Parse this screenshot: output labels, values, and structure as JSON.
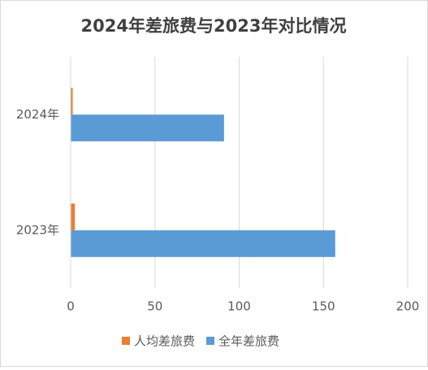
{
  "chart_data": {
    "type": "hbar",
    "title": "2024年差旅费与2023年对比情况",
    "categories": [
      "2024年",
      "2023年"
    ],
    "series": [
      {
        "name": "人均差旅费",
        "color": "#ed7d31",
        "values": [
          1.2,
          2.5
        ]
      },
      {
        "name": "全年差旅费",
        "color": "#5b9bd5",
        "values": [
          91,
          157
        ]
      }
    ],
    "xlim": [
      0,
      200
    ],
    "xticks": [
      0,
      50,
      100,
      150,
      200
    ],
    "grid": true,
    "legend": "bottom"
  }
}
